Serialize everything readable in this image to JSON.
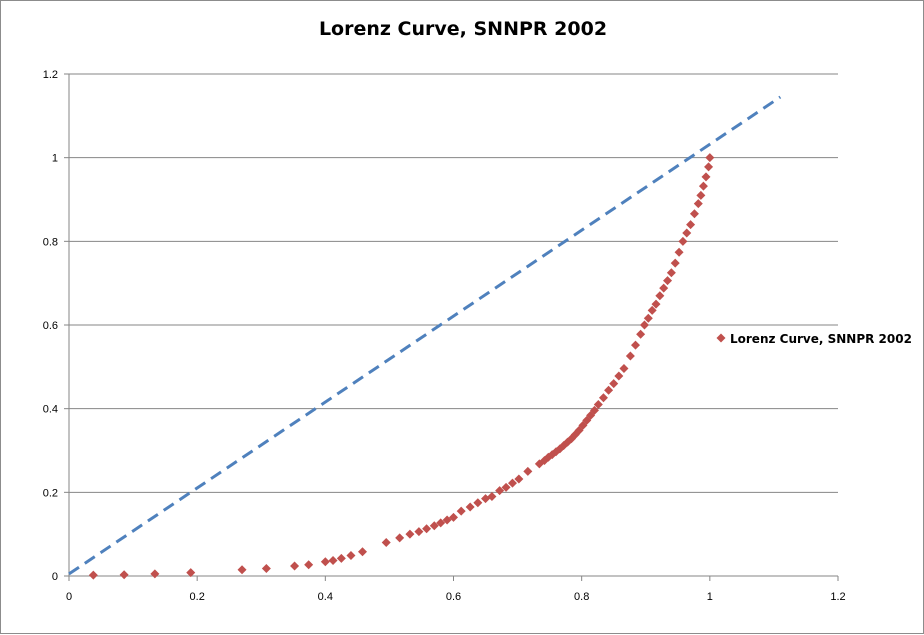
{
  "chart_data": {
    "type": "scatter",
    "title": "Lorenz Curve, SNNPR  2002",
    "xlabel": "",
    "ylabel": "",
    "xlim": [
      0,
      1.2
    ],
    "ylim": [
      0,
      1.2
    ],
    "x_ticks": [
      "0",
      "0.2",
      "0.4",
      "0.6",
      "0.8",
      "1",
      "1.2"
    ],
    "y_ticks": [
      "0",
      "0.2",
      "0.4",
      "0.6",
      "0.8",
      "1",
      "1.2"
    ],
    "grid": "horizontal",
    "legend_position": "right",
    "series": [
      {
        "name": "Lorenz Curve, SNNPR  2002",
        "color": "#c0504d",
        "marker": "diamond",
        "points": [
          [
            0.038,
            0.002
          ],
          [
            0.086,
            0.003
          ],
          [
            0.134,
            0.005
          ],
          [
            0.19,
            0.008
          ],
          [
            0.27,
            0.015
          ],
          [
            0.308,
            0.018
          ],
          [
            0.352,
            0.024
          ],
          [
            0.374,
            0.027
          ],
          [
            0.4,
            0.034
          ],
          [
            0.412,
            0.037
          ],
          [
            0.425,
            0.042
          ],
          [
            0.44,
            0.049
          ],
          [
            0.458,
            0.058
          ],
          [
            0.495,
            0.08
          ],
          [
            0.516,
            0.091
          ],
          [
            0.532,
            0.1
          ],
          [
            0.546,
            0.106
          ],
          [
            0.558,
            0.113
          ],
          [
            0.57,
            0.12
          ],
          [
            0.58,
            0.127
          ],
          [
            0.59,
            0.134
          ],
          [
            0.6,
            0.14
          ],
          [
            0.612,
            0.155
          ],
          [
            0.626,
            0.165
          ],
          [
            0.638,
            0.175
          ],
          [
            0.65,
            0.185
          ],
          [
            0.66,
            0.19
          ],
          [
            0.672,
            0.204
          ],
          [
            0.682,
            0.212
          ],
          [
            0.692,
            0.222
          ],
          [
            0.702,
            0.232
          ],
          [
            0.716,
            0.25
          ],
          [
            0.734,
            0.268
          ],
          [
            0.742,
            0.276
          ],
          [
            0.748,
            0.284
          ],
          [
            0.754,
            0.29
          ],
          [
            0.76,
            0.297
          ],
          [
            0.766,
            0.304
          ],
          [
            0.772,
            0.312
          ],
          [
            0.778,
            0.32
          ],
          [
            0.784,
            0.328
          ],
          [
            0.79,
            0.338
          ],
          [
            0.796,
            0.348
          ],
          [
            0.802,
            0.36
          ],
          [
            0.808,
            0.372
          ],
          [
            0.814,
            0.384
          ],
          [
            0.82,
            0.396
          ],
          [
            0.826,
            0.41
          ],
          [
            0.834,
            0.426
          ],
          [
            0.842,
            0.444
          ],
          [
            0.85,
            0.46
          ],
          [
            0.858,
            0.478
          ],
          [
            0.866,
            0.496
          ],
          [
            0.876,
            0.526
          ],
          [
            0.884,
            0.552
          ],
          [
            0.892,
            0.578
          ],
          [
            0.898,
            0.6
          ],
          [
            0.904,
            0.616
          ],
          [
            0.91,
            0.635
          ],
          [
            0.916,
            0.65
          ],
          [
            0.922,
            0.67
          ],
          [
            0.928,
            0.688
          ],
          [
            0.934,
            0.706
          ],
          [
            0.94,
            0.725
          ],
          [
            0.946,
            0.748
          ],
          [
            0.952,
            0.774
          ],
          [
            0.958,
            0.8
          ],
          [
            0.964,
            0.82
          ],
          [
            0.97,
            0.84
          ],
          [
            0.976,
            0.866
          ],
          [
            0.982,
            0.89
          ],
          [
            0.986,
            0.91
          ],
          [
            0.99,
            0.932
          ],
          [
            0.994,
            0.954
          ],
          [
            0.998,
            0.978
          ],
          [
            1.0,
            1.0
          ]
        ]
      },
      {
        "name": "",
        "color": "#4f81bd",
        "marker": "none",
        "line": "dashed",
        "points": [
          [
            0,
            0.005
          ],
          [
            1.11,
            1.145
          ]
        ]
      }
    ]
  }
}
